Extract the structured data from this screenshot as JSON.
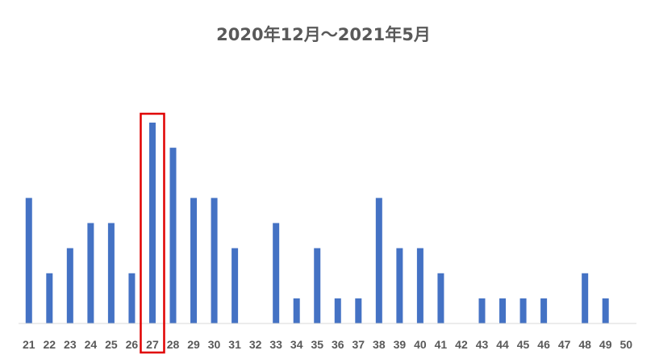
{
  "chart_data": {
    "type": "bar",
    "title": "2020年12月～2021年5月",
    "xlabel": "",
    "ylabel": "",
    "categories": [
      "21",
      "22",
      "23",
      "24",
      "25",
      "26",
      "27",
      "28",
      "29",
      "30",
      "31",
      "32",
      "33",
      "34",
      "35",
      "36",
      "37",
      "38",
      "39",
      "40",
      "41",
      "42",
      "43",
      "44",
      "45",
      "46",
      "47",
      "48",
      "49",
      "50"
    ],
    "values": [
      5,
      2,
      3,
      4,
      4,
      2,
      8,
      7,
      5,
      5,
      3,
      0,
      4,
      1,
      3,
      1,
      1,
      5,
      3,
      3,
      2,
      0,
      1,
      1,
      1,
      1,
      0,
      2,
      1,
      0
    ],
    "ylim": [
      0,
      8
    ],
    "grid": false,
    "legend": "none",
    "highlighted_category": "27",
    "colors": {
      "bar": "#4472c4",
      "highlight": "#e00000",
      "text": "#595959",
      "axis": "#d9d9d9"
    }
  }
}
